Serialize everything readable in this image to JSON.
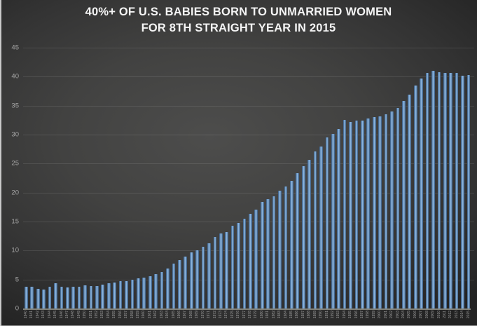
{
  "title": {
    "line1": "40%+ OF U.S. BABIES BORN TO UNMARRIED WOMEN",
    "line2": "FOR 8TH STRAIGHT YEAR IN 2015"
  },
  "colors": {
    "background_center": "#4d4d4c",
    "background_edge": "#232323",
    "title_text": "#f4f4f4",
    "bar_edge": "#33567e",
    "bar_center": "#8fb8e0",
    "gridline": "rgba(255,255,255,0.10)",
    "axis_line": "#82827a",
    "tick_label": "#a6a6a6"
  },
  "chart_data": {
    "type": "bar",
    "title": "40%+ OF U.S. BABIES BORN TO UNMARRIED WOMEN FOR 8TH STRAIGHT YEAR IN 2015",
    "xlabel": "",
    "ylabel": "",
    "ylim": [
      0,
      45
    ],
    "yticks": [
      0,
      5,
      10,
      15,
      20,
      25,
      30,
      35,
      40,
      45
    ],
    "grid": true,
    "legend": false,
    "categories": [
      "1940",
      "1941",
      "1942",
      "1943",
      "1944",
      "1945",
      "1946",
      "1947",
      "1948",
      "1949",
      "1950",
      "1951",
      "1952",
      "1953",
      "1954",
      "1955",
      "1956",
      "1957",
      "1958",
      "1959",
      "1960",
      "1961",
      "1962",
      "1963",
      "1964",
      "1965",
      "1966",
      "1967",
      "1968",
      "1969",
      "1970",
      "1971",
      "1972",
      "1973",
      "1974",
      "1975",
      "1976",
      "1977",
      "1978",
      "1979",
      "1980",
      "1981",
      "1982",
      "1983",
      "1984",
      "1985",
      "1986",
      "1987",
      "1988",
      "1989",
      "1990",
      "1991",
      "1992",
      "1993",
      "1994",
      "1995",
      "1996",
      "1997",
      "1998",
      "1999",
      "2000",
      "2001",
      "2002",
      "2003",
      "2004",
      "2005",
      "2006",
      "2007",
      "2008",
      "2009",
      "2010",
      "2011",
      "2012",
      "2013",
      "2014",
      "2015"
    ],
    "values": [
      3.8,
      3.8,
      3.4,
      3.3,
      3.8,
      4.3,
      3.8,
      3.6,
      3.7,
      3.7,
      4.0,
      3.9,
      3.9,
      4.1,
      4.4,
      4.5,
      4.7,
      4.7,
      5.0,
      5.2,
      5.3,
      5.6,
      5.9,
      6.3,
      6.9,
      7.7,
      8.4,
      9.0,
      9.7,
      10.0,
      10.7,
      11.3,
      12.4,
      13.0,
      13.2,
      14.3,
      14.8,
      15.5,
      16.3,
      17.1,
      18.4,
      18.9,
      19.4,
      20.3,
      21.0,
      22.0,
      23.4,
      24.5,
      25.7,
      27.1,
      28.0,
      29.5,
      30.1,
      31.0,
      32.6,
      32.2,
      32.4,
      32.4,
      32.8,
      33.0,
      33.2,
      33.5,
      34.0,
      34.6,
      35.8,
      36.9,
      38.5,
      39.7,
      40.6,
      41.0,
      40.8,
      40.7,
      40.7,
      40.6,
      40.2,
      40.3
    ]
  }
}
